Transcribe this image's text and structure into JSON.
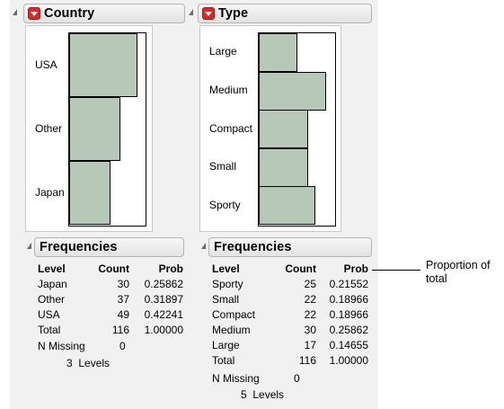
{
  "country": {
    "title": "Country",
    "categories": [
      {
        "label": "USA",
        "count": 49
      },
      {
        "label": "Other",
        "count": 37
      },
      {
        "label": "Japan",
        "count": 30
      }
    ],
    "frequencies": {
      "title": "Frequencies",
      "headers": {
        "level": "Level",
        "count": "Count",
        "prob": "Prob"
      },
      "rows": [
        {
          "level": "Japan",
          "count": "30",
          "prob": "0.25862"
        },
        {
          "level": "Other",
          "count": "37",
          "prob": "0.31897"
        },
        {
          "level": "USA",
          "count": "49",
          "prob": "0.42241"
        },
        {
          "level": "Total",
          "count": "116",
          "prob": "1.00000"
        }
      ],
      "n_missing_label": "N Missing",
      "n_missing_value": "0",
      "levels_text": "3  Levels"
    }
  },
  "type": {
    "title": "Type",
    "categories": [
      {
        "label": "Large",
        "count": 17
      },
      {
        "label": "Medium",
        "count": 30
      },
      {
        "label": "Compact",
        "count": 22
      },
      {
        "label": "Small",
        "count": 22
      },
      {
        "label": "Sporty",
        "count": 25
      }
    ],
    "frequencies": {
      "title": "Frequencies",
      "headers": {
        "level": "Level",
        "count": "Count",
        "prob": "Prob"
      },
      "rows": [
        {
          "level": "Sporty",
          "count": "25",
          "prob": "0.21552"
        },
        {
          "level": "Small",
          "count": "22",
          "prob": "0.18966"
        },
        {
          "level": "Compact",
          "count": "22",
          "prob": "0.18966"
        },
        {
          "level": "Medium",
          "count": "30",
          "prob": "0.25862"
        },
        {
          "level": "Large",
          "count": "17",
          "prob": "0.14655"
        },
        {
          "level": "Total",
          "count": "116",
          "prob": "1.00000"
        }
      ],
      "n_missing_label": "N Missing",
      "n_missing_value": "0",
      "levels_text": "5  Levels"
    }
  },
  "callout": {
    "text_line1": "Proportion of",
    "text_line2": "total"
  },
  "colors": {
    "bar_fill": "#b8c8b8",
    "red_button": "#d42b2b"
  },
  "chart_data": [
    {
      "type": "bar",
      "orientation": "horizontal",
      "categories": [
        "USA",
        "Other",
        "Japan"
      ],
      "values": [
        49,
        37,
        30
      ],
      "title": "Country"
    },
    {
      "type": "bar",
      "orientation": "horizontal",
      "categories": [
        "Large",
        "Medium",
        "Compact",
        "Small",
        "Sporty"
      ],
      "values": [
        17,
        30,
        22,
        22,
        25
      ],
      "title": "Type"
    }
  ]
}
